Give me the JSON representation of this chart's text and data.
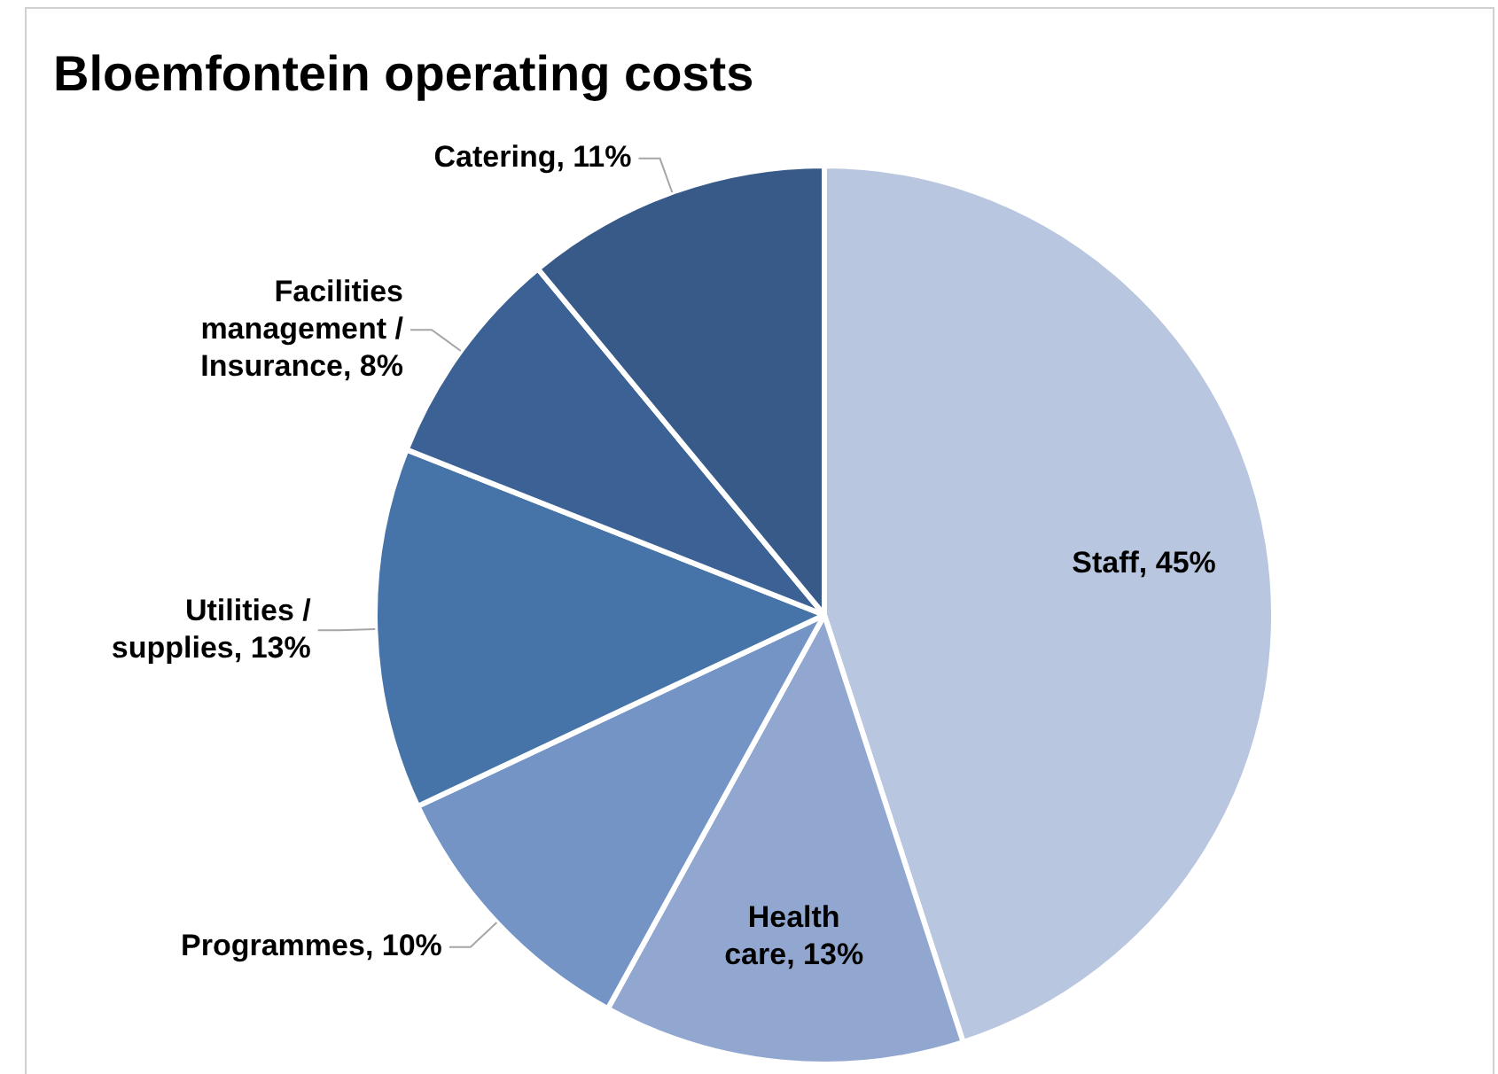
{
  "chart_data": {
    "type": "pie",
    "title": "Bloemfontein operating costs",
    "categories": [
      "Staff",
      "Health care",
      "Programmes",
      "Utilities / supplies",
      "Facilities management / Insurance",
      "Catering"
    ],
    "values": [
      45,
      13,
      10,
      13,
      8,
      11
    ],
    "value_labels": [
      "45%",
      "13%",
      "10%",
      "13%",
      "8%",
      "11%"
    ],
    "colors": [
      "#b9c6e0",
      "#92a7d0",
      "#7594c6",
      "#4674a9",
      "#3c6195",
      "#375a89"
    ],
    "legend": false
  }
}
